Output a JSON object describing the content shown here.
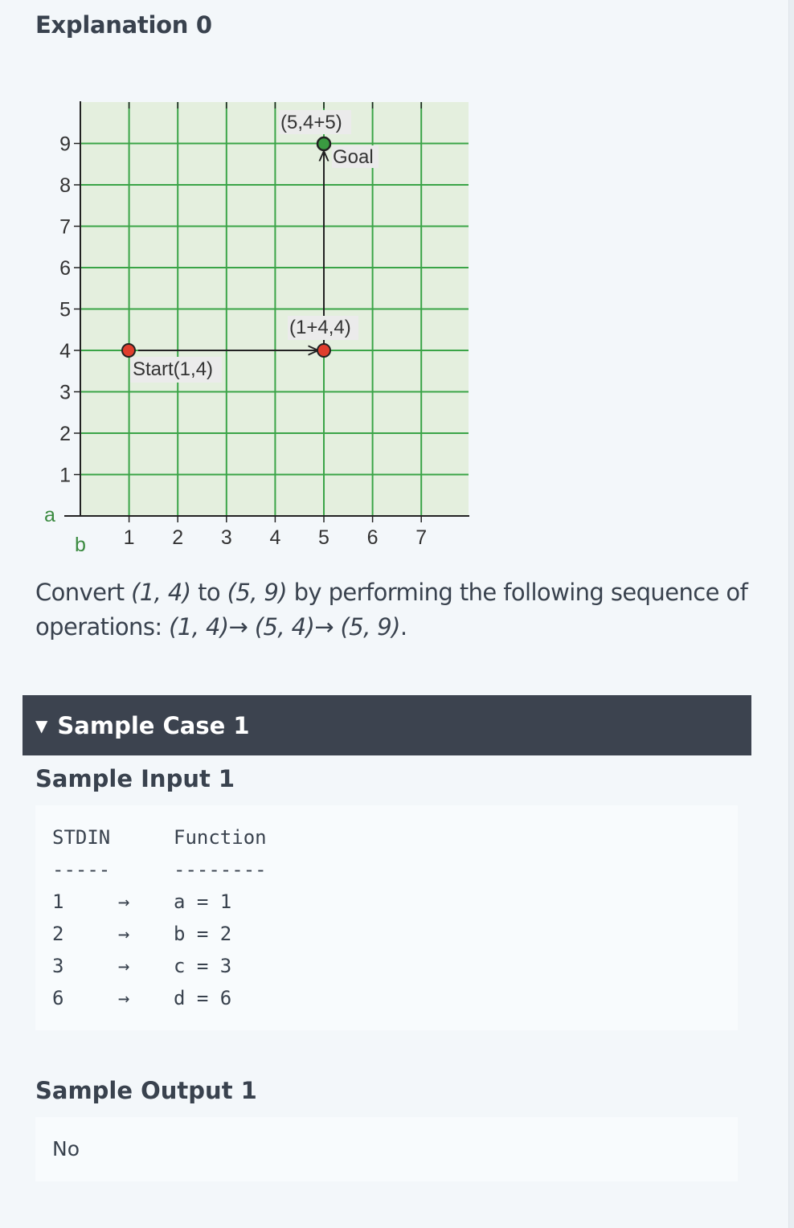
{
  "heading": "Explanation 0",
  "diagram": {
    "y_axis_var": "a",
    "x_axis_var": "b",
    "x_ticks": [
      "1",
      "2",
      "3",
      "4",
      "5",
      "6",
      "7"
    ],
    "y_ticks": [
      "1",
      "2",
      "3",
      "4",
      "5",
      "6",
      "7",
      "8",
      "9"
    ],
    "start_label": "Start(1,4)",
    "mid_label": "(1+4,4)",
    "top_label": "(5,4+5)",
    "goal_label": "Goal",
    "colors": {
      "grid_bg": "#e4efde",
      "grid_line": "#3aa447",
      "red_point": "#e03e2d",
      "green_point": "#3a9a41"
    }
  },
  "explanation": {
    "p1": "Convert ",
    "e1": "(1, 4)",
    "p2": " to ",
    "e2": "(5, 9)",
    "p3": " by performing the following sequence of operations: ",
    "e3": "(1, 4)→ (5, 4)→ (5, 9)",
    "p4": "."
  },
  "sample_case": {
    "label": "Sample Case 1",
    "toggle_icon": "triangle-down-icon"
  },
  "sample_input": {
    "heading": "Sample Input 1",
    "col1_header": "STDIN",
    "col1_rule": "-----",
    "col2_header": "Function",
    "col2_rule": "--------",
    "rows": [
      {
        "stdin": "1",
        "arrow": "→",
        "fn": "a = 1"
      },
      {
        "stdin": "2",
        "arrow": "→",
        "fn": "b = 2"
      },
      {
        "stdin": "3",
        "arrow": "→",
        "fn": "c = 3"
      },
      {
        "stdin": "6",
        "arrow": "→",
        "fn": "d = 6"
      }
    ]
  },
  "sample_output": {
    "heading": "Sample Output 1",
    "value": "No"
  }
}
